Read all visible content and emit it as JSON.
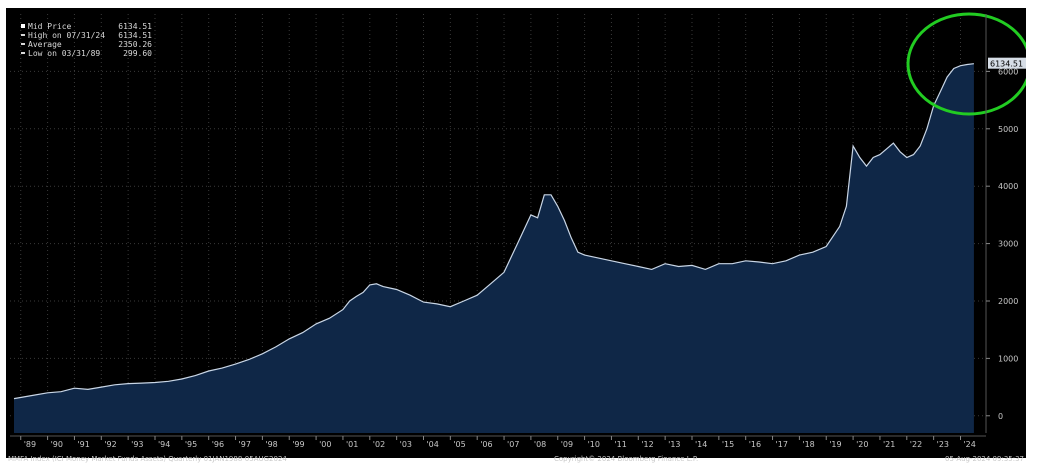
{
  "legend": {
    "items": [
      {
        "label": "Mid Price",
        "value": "6134.51"
      },
      {
        "label": "High on 07/31/24",
        "value": "6134.51"
      },
      {
        "label": "Average",
        "value": "2350.26"
      },
      {
        "label": "Low on 03/31/89",
        "value": "299.60"
      }
    ]
  },
  "footer": {
    "left": "MMFA Index (ICI Money Market Funds Assets)  Quarterly 01JAN1988-05AUG2024",
    "center": "Copyright© 2024 Bloomberg Finance L.P.",
    "right": "05-Aug-2024 09:35:37"
  },
  "colors": {
    "background": "#000000",
    "area_fill": "#0f2747",
    "line": "#c9d6e6",
    "grid": "#3a3a3a",
    "highlight_ellipse": "#22cc22",
    "last_value_tag": "#d6dde6"
  },
  "chart_data": {
    "type": "area",
    "title": "",
    "xlabel": "",
    "ylabel": "",
    "x_ticks": [
      "'89",
      "'90",
      "'91",
      "'92",
      "'93",
      "'94",
      "'95",
      "'96",
      "'97",
      "'98",
      "'99",
      "'00",
      "'01",
      "'02",
      "'03",
      "'04",
      "'05",
      "'06",
      "'07",
      "'08",
      "'09",
      "'10",
      "'11",
      "'12",
      "'13",
      "'14",
      "'15",
      "'16",
      "'17",
      "'18",
      "'19",
      "'20",
      "'21",
      "'22",
      "'23",
      "'24"
    ],
    "y_ticks": [
      0,
      1000,
      2000,
      3000,
      4000,
      5000,
      6000
    ],
    "ylim": [
      -300,
      7000
    ],
    "grid": true,
    "last_value_label": "6134.51",
    "annotation": "green ellipse highlighting 2023-2024 peak",
    "x": [
      1988.75,
      1989.5,
      1990,
      1990.5,
      1991,
      1991.5,
      1992,
      1992.5,
      1993,
      1993.5,
      1994,
      1994.5,
      1995,
      1995.5,
      1996,
      1996.5,
      1997,
      1997.5,
      1998,
      1998.5,
      1999,
      1999.5,
      2000,
      2000.5,
      2001,
      2001.25,
      2001.5,
      2001.75,
      2002,
      2002.25,
      2002.5,
      2003,
      2003.5,
      2004,
      2004.5,
      2005,
      2005.5,
      2006,
      2006.5,
      2007,
      2007.5,
      2008,
      2008.25,
      2008.5,
      2008.75,
      2009,
      2009.25,
      2009.5,
      2009.75,
      2010,
      2010.5,
      2011,
      2011.5,
      2012,
      2012.5,
      2013,
      2013.5,
      2014,
      2014.5,
      2015,
      2015.5,
      2016,
      2016.5,
      2017,
      2017.5,
      2018,
      2018.5,
      2019,
      2019.5,
      2019.75,
      2020,
      2020.25,
      2020.5,
      2020.75,
      2021,
      2021.5,
      2021.75,
      2022,
      2022.25,
      2022.5,
      2022.75,
      2023,
      2023.25,
      2023.5,
      2023.75,
      2024,
      2024.25,
      2024.5
    ],
    "series": [
      {
        "values": [
          300,
          360,
          400,
          420,
          480,
          460,
          500,
          540,
          560,
          570,
          580,
          600,
          640,
          700,
          780,
          830,
          900,
          980,
          1080,
          1200,
          1340,
          1450,
          1600,
          1700,
          1850,
          2000,
          2080,
          2150,
          2280,
          2300,
          2250,
          2200,
          2100,
          1980,
          1950,
          1900,
          2000,
          2100,
          2300,
          2500,
          3000,
          3500,
          3450,
          3850,
          3850,
          3650,
          3400,
          3100,
          2850,
          2800,
          2750,
          2700,
          2650,
          2600,
          2550,
          2650,
          2600,
          2620,
          2550,
          2650,
          2650,
          2700,
          2680,
          2650,
          2700,
          2800,
          2850,
          2950,
          3300,
          3650,
          4700,
          4500,
          4350,
          4500,
          4550,
          4750,
          4600,
          4500,
          4550,
          4700,
          5000,
          5400,
          5650,
          5900,
          6050,
          6100,
          6120,
          6134.51
        ]
      }
    ]
  }
}
